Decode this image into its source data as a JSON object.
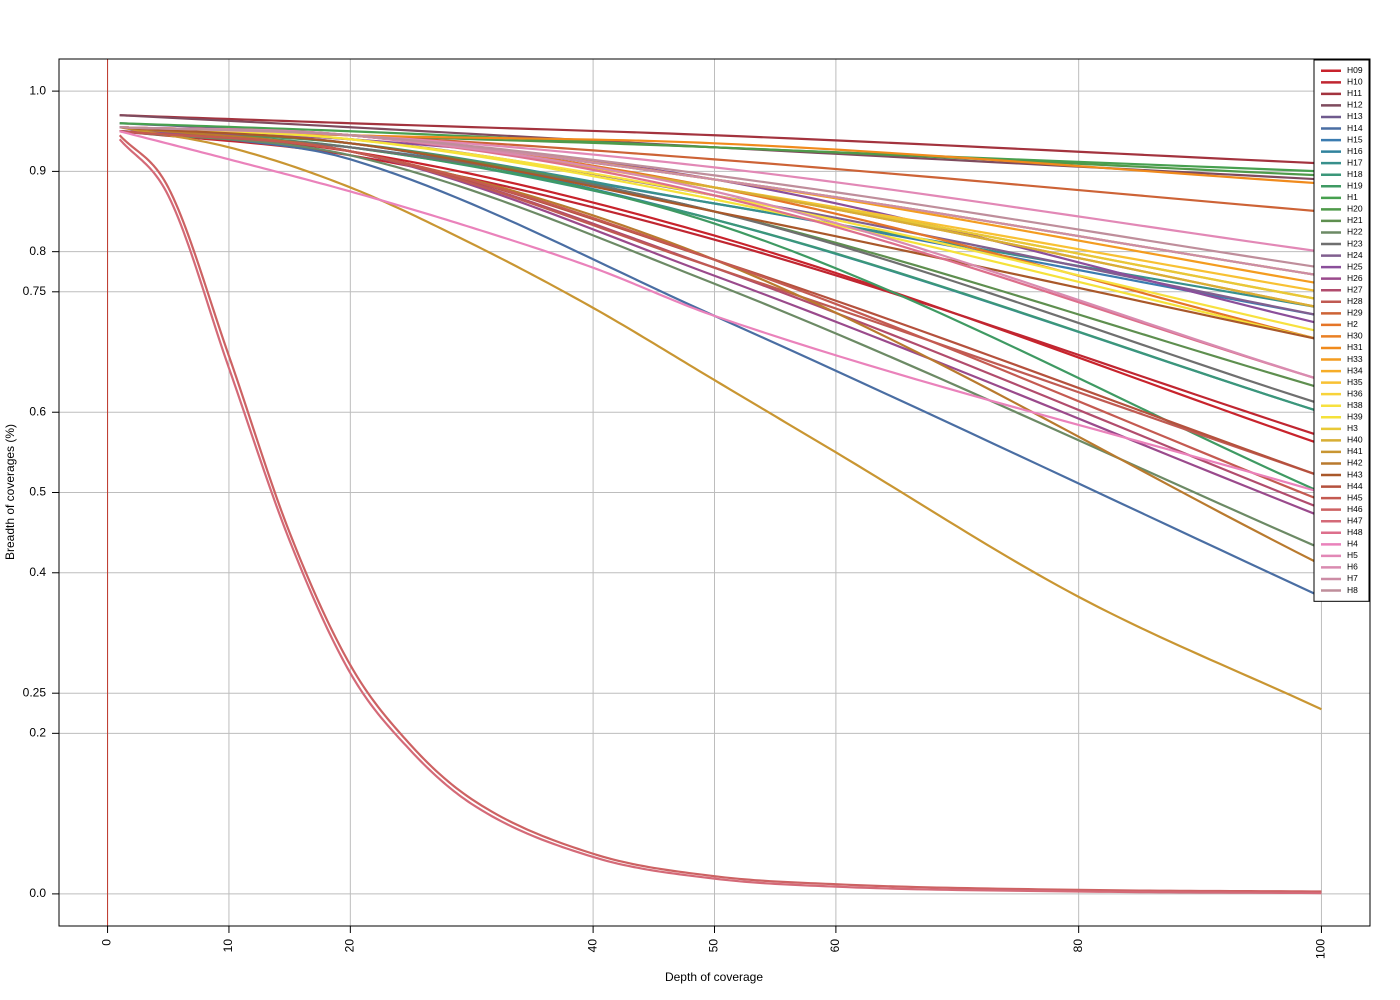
{
  "chart_data": {
    "type": "line",
    "title": "",
    "xlabel": "Depth of coverage",
    "ylabel": "Breadth of coverages (%)",
    "xlim": [
      -4,
      104
    ],
    "ylim": [
      -0.04,
      1.04
    ],
    "x_ticks": [
      0,
      10,
      20,
      40,
      50,
      60,
      80,
      100
    ],
    "x_tick_labels": [
      "0",
      "10",
      "20",
      "40",
      "50",
      "60",
      "80",
      "100"
    ],
    "y_ticks": [
      0.0,
      0.2,
      0.25,
      0.4,
      0.5,
      0.6,
      0.75,
      0.8,
      0.9,
      1.0
    ],
    "y_tick_labels": [
      "0.0",
      "0.2",
      "0.25",
      "0.4",
      "0.5",
      "0.6",
      "0.75",
      "0.8",
      "0.9",
      "1.0"
    ],
    "grid": true,
    "vline_x": 0,
    "legend_position": "top-right",
    "series": [
      {
        "name": "H09",
        "color": "#c8232c",
        "x": [
          1,
          20,
          50,
          100
        ],
        "y": [
          0.95,
          0.925,
          0.82,
          0.56
        ]
      },
      {
        "name": "H10",
        "color": "#c02631",
        "x": [
          1,
          20,
          50,
          100
        ],
        "y": [
          0.95,
          0.92,
          0.815,
          0.57
        ]
      },
      {
        "name": "H11",
        "color": "#a3333e",
        "x": [
          1,
          20,
          50,
          100
        ],
        "y": [
          0.97,
          0.96,
          0.945,
          0.91
        ]
      },
      {
        "name": "H12",
        "color": "#7f4b5e",
        "x": [
          1,
          20,
          50,
          100
        ],
        "y": [
          0.97,
          0.955,
          0.93,
          0.89
        ]
      },
      {
        "name": "H13",
        "color": "#6f5a8e",
        "x": [
          1,
          20,
          50,
          100
        ],
        "y": [
          0.96,
          0.945,
          0.89,
          0.77
        ]
      },
      {
        "name": "H14",
        "color": "#4a6ea3",
        "x": [
          1,
          10,
          20,
          50,
          100
        ],
        "y": [
          0.95,
          0.94,
          0.915,
          0.72,
          0.37
        ]
      },
      {
        "name": "H15",
        "color": "#3b7cb0",
        "x": [
          1,
          20,
          50,
          100
        ],
        "y": [
          0.95,
          0.93,
          0.86,
          0.72
        ]
      },
      {
        "name": "H16",
        "color": "#30839d",
        "x": [
          1,
          20,
          50,
          100
        ],
        "y": [
          0.95,
          0.935,
          0.84,
          0.6
        ]
      },
      {
        "name": "H17",
        "color": "#38908c",
        "x": [
          1,
          20,
          50,
          100
        ],
        "y": [
          0.95,
          0.935,
          0.86,
          0.73
        ]
      },
      {
        "name": "H18",
        "color": "#3b977a",
        "x": [
          1,
          20,
          50,
          100
        ],
        "y": [
          0.95,
          0.93,
          0.84,
          0.6
        ]
      },
      {
        "name": "H19",
        "color": "#3f9a63",
        "x": [
          1,
          20,
          50,
          100
        ],
        "y": [
          0.95,
          0.93,
          0.835,
          0.5
        ]
      },
      {
        "name": "H1",
        "color": "#47a04f",
        "x": [
          1,
          20,
          50,
          100
        ],
        "y": [
          0.96,
          0.95,
          0.93,
          0.9
        ]
      },
      {
        "name": "H20",
        "color": "#4f9a4a",
        "x": [
          1,
          20,
          50,
          100
        ],
        "y": [
          0.955,
          0.945,
          0.93,
          0.895
        ]
      },
      {
        "name": "H21",
        "color": "#5e8f4f",
        "x": [
          1,
          20,
          50,
          100
        ],
        "y": [
          0.95,
          0.935,
          0.85,
          0.63
        ]
      },
      {
        "name": "H22",
        "color": "#6c8a65",
        "x": [
          1,
          20,
          50,
          100
        ],
        "y": [
          0.95,
          0.92,
          0.76,
          0.43
        ]
      },
      {
        "name": "H23",
        "color": "#6f6f6f",
        "x": [
          1,
          20,
          50,
          100
        ],
        "y": [
          0.95,
          0.93,
          0.85,
          0.61
        ]
      },
      {
        "name": "H24",
        "color": "#815f8f",
        "x": [
          1,
          20,
          50,
          100
        ],
        "y": [
          0.95,
          0.94,
          0.87,
          0.72
        ]
      },
      {
        "name": "H25",
        "color": "#8b4f9b",
        "x": [
          1,
          20,
          50,
          100
        ],
        "y": [
          0.95,
          0.94,
          0.89,
          0.71
        ]
      },
      {
        "name": "H26",
        "color": "#9a4a8c",
        "x": [
          1,
          20,
          50,
          100
        ],
        "y": [
          0.95,
          0.925,
          0.77,
          0.47
        ]
      },
      {
        "name": "H27",
        "color": "#b14c6d",
        "x": [
          1,
          20,
          50,
          100
        ],
        "y": [
          0.95,
          0.925,
          0.78,
          0.48
        ]
      },
      {
        "name": "H28",
        "color": "#c05a52",
        "x": [
          1,
          20,
          50,
          100
        ],
        "y": [
          0.95,
          0.925,
          0.78,
          0.52
        ]
      },
      {
        "name": "H29",
        "color": "#cd6336",
        "x": [
          1,
          20,
          50,
          100
        ],
        "y": [
          0.955,
          0.945,
          0.915,
          0.85
        ]
      },
      {
        "name": "H2",
        "color": "#e57528",
        "x": [
          1,
          20,
          50,
          100
        ],
        "y": [
          0.955,
          0.945,
          0.88,
          0.69
        ]
      },
      {
        "name": "H30",
        "color": "#ea8024",
        "x": [
          1,
          20,
          50,
          100
        ],
        "y": [
          0.955,
          0.945,
          0.88,
          0.73
        ]
      },
      {
        "name": "H31",
        "color": "#f08a1c",
        "x": [
          1,
          20,
          50,
          100
        ],
        "y": [
          0.955,
          0.945,
          0.935,
          0.885
        ]
      },
      {
        "name": "H33",
        "color": "#f49c1f",
        "x": [
          1,
          20,
          50,
          100
        ],
        "y": [
          0.955,
          0.945,
          0.89,
          0.76
        ]
      },
      {
        "name": "H34",
        "color": "#f6ad28",
        "x": [
          1,
          20,
          50,
          100
        ],
        "y": [
          0.955,
          0.945,
          0.88,
          0.74
        ]
      },
      {
        "name": "H35",
        "color": "#f8c133",
        "x": [
          1,
          20,
          50,
          100
        ],
        "y": [
          0.955,
          0.945,
          0.88,
          0.75
        ]
      },
      {
        "name": "H36",
        "color": "#f8d33a",
        "x": [
          1,
          20,
          50,
          100
        ],
        "y": [
          0.955,
          0.945,
          0.89,
          0.77
        ]
      },
      {
        "name": "H38",
        "color": "#f7e13f",
        "x": [
          1,
          20,
          50,
          100
        ],
        "y": [
          0.955,
          0.94,
          0.87,
          0.7
        ]
      },
      {
        "name": "H39",
        "color": "#f5e23a",
        "x": [
          1,
          20,
          50,
          100
        ],
        "y": [
          0.955,
          0.94,
          0.865,
          0.69
        ]
      },
      {
        "name": "H3",
        "color": "#e8c837",
        "x": [
          1,
          20,
          50,
          100
        ],
        "y": [
          0.955,
          0.945,
          0.88,
          0.74
        ]
      },
      {
        "name": "H40",
        "color": "#d8ae34",
        "x": [
          1,
          20,
          50,
          100
        ],
        "y": [
          0.955,
          0.945,
          0.88,
          0.73
        ]
      },
      {
        "name": "H41",
        "color": "#c99632",
        "x": [
          1,
          10,
          20,
          30,
          40,
          50,
          60,
          80,
          100
        ],
        "y": [
          0.955,
          0.93,
          0.88,
          0.81,
          0.73,
          0.64,
          0.55,
          0.37,
          0.23
        ]
      },
      {
        "name": "H42",
        "color": "#b97a2e",
        "x": [
          1,
          20,
          50,
          100
        ],
        "y": [
          0.955,
          0.925,
          0.79,
          0.41
        ]
      },
      {
        "name": "H43",
        "color": "#a9582a",
        "x": [
          1,
          20,
          50,
          100
        ],
        "y": [
          0.955,
          0.935,
          0.85,
          0.69
        ]
      },
      {
        "name": "H44",
        "color": "#b5513d",
        "x": [
          1,
          20,
          50,
          100
        ],
        "y": [
          0.95,
          0.925,
          0.79,
          0.52
        ]
      },
      {
        "name": "H45",
        "color": "#c45a51",
        "x": [
          1,
          20,
          50,
          100
        ],
        "y": [
          0.95,
          0.925,
          0.79,
          0.49
        ]
      },
      {
        "name": "H46",
        "color": "#cd6263",
        "x": [
          1,
          5,
          10,
          15,
          20,
          25,
          30,
          40,
          50,
          60,
          80,
          100
        ],
        "y": [
          0.945,
          0.88,
          0.67,
          0.45,
          0.285,
          0.185,
          0.118,
          0.05,
          0.022,
          0.012,
          0.005,
          0.003
        ]
      },
      {
        "name": "H47",
        "color": "#d46a78",
        "x": [
          1,
          5,
          10,
          15,
          20,
          25,
          30,
          40,
          50,
          60,
          80,
          100
        ],
        "y": [
          0.94,
          0.87,
          0.655,
          0.44,
          0.275,
          0.178,
          0.112,
          0.046,
          0.019,
          0.009,
          0.003,
          0.001
        ]
      },
      {
        "name": "H48",
        "color": "#dd6f8c",
        "x": [
          1,
          20,
          50,
          100
        ],
        "y": [
          0.955,
          0.945,
          0.87,
          0.64
        ]
      },
      {
        "name": "H4",
        "color": "#ea82bb",
        "x": [
          1,
          10,
          20,
          30,
          40,
          50,
          100
        ],
        "y": [
          0.95,
          0.915,
          0.875,
          0.83,
          0.78,
          0.72,
          0.5
        ]
      },
      {
        "name": "H5",
        "color": "#e288b6",
        "x": [
          1,
          20,
          50,
          100
        ],
        "y": [
          0.955,
          0.945,
          0.905,
          0.8
        ]
      },
      {
        "name": "H6",
        "color": "#d98bb0",
        "x": [
          1,
          20,
          50,
          100
        ],
        "y": [
          0.955,
          0.945,
          0.875,
          0.64
        ]
      },
      {
        "name": "H7",
        "color": "#cc8ca5",
        "x": [
          1,
          20,
          50,
          100
        ],
        "y": [
          0.955,
          0.945,
          0.89,
          0.77
        ]
      },
      {
        "name": "H8",
        "color": "#bf8e9b",
        "x": [
          1,
          20,
          50,
          100
        ],
        "y": [
          0.955,
          0.945,
          0.895,
          0.78
        ]
      }
    ]
  }
}
